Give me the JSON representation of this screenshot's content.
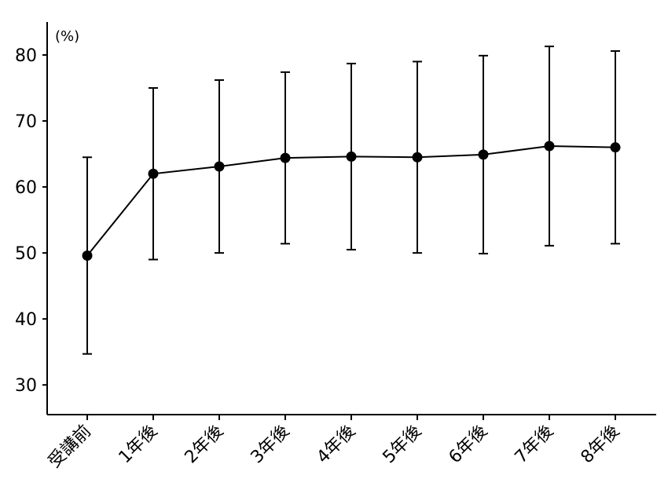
{
  "chart_data": {
    "type": "line",
    "title": "",
    "xlabel": "",
    "ylabel": "",
    "unit_label": "(%)",
    "categories": [
      "受講前",
      "1年後",
      "2年後",
      "3年後",
      "4年後",
      "5年後",
      "6年後",
      "7年後",
      "8年後"
    ],
    "series": [
      {
        "values": [
          49.6,
          62.0,
          63.1,
          64.4,
          64.6,
          64.5,
          64.9,
          66.2,
          66.0
        ],
        "error_low": [
          34.7,
          49.0,
          50.0,
          51.4,
          50.5,
          50.0,
          49.9,
          51.1,
          51.4
        ],
        "error_high": [
          64.5,
          75.0,
          76.2,
          77.4,
          78.7,
          79.0,
          79.9,
          81.3,
          80.6
        ]
      }
    ],
    "ylim": [
      25.5,
      85
    ],
    "yticks": [
      30,
      40,
      50,
      60,
      70,
      80
    ],
    "grid": false,
    "legend": "none",
    "color": "#000000"
  }
}
